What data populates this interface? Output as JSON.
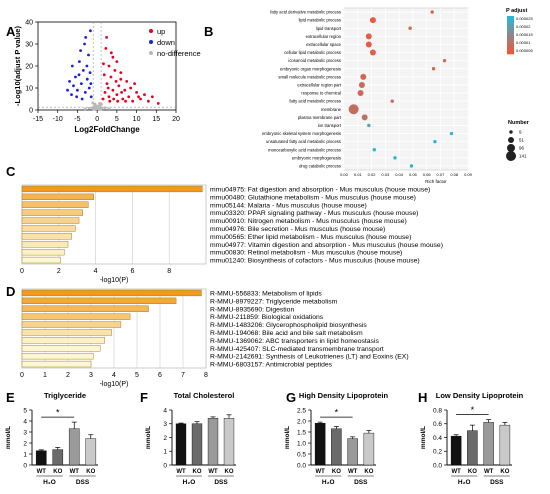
{
  "panels": {
    "A": "A",
    "B": "B",
    "C": "C",
    "D": "D",
    "E": "E",
    "F": "F",
    "G": "G",
    "H": "H"
  },
  "colors": {
    "up": "#e8001c",
    "down": "#1a22d8",
    "nodiff": "#b8b8b8",
    "bar_dark": "#111111",
    "bar_mid": "#6a6a6a",
    "bar_gray": "#9a9a9a",
    "bar_light": "#c9c9c9",
    "enrich_orange": "#f39a1e",
    "enrich_pale": "#fdf6d2",
    "padj_low": "#f2563a",
    "padj_high": "#2ab7d6"
  },
  "chart_data": [
    {
      "id": "A",
      "type": "scatter",
      "title": "",
      "xlabel": "Log2FoldChange",
      "ylabel": "-Log10(adjust P value)",
      "xlim": [
        -15,
        20
      ],
      "ylim": [
        0,
        40
      ],
      "xticks": [
        "-15",
        "-10",
        "-5",
        "0",
        "5",
        "10",
        "15",
        "20"
      ],
      "yticks": [
        "0",
        "10",
        "20",
        "30",
        "40"
      ],
      "legend": [
        "up",
        "down",
        "no-difference"
      ],
      "legend_position": "top-right",
      "series": [
        {
          "name": "up",
          "points": [
            [
              1.5,
              5
            ],
            [
              2,
              8
            ],
            [
              2.5,
              12
            ],
            [
              3,
              6
            ],
            [
              3.5,
              15
            ],
            [
              4,
              9
            ],
            [
              4.5,
              18
            ],
            [
              5,
              7
            ],
            [
              5.5,
              11
            ],
            [
              6,
              14
            ],
            [
              6.5,
              5
            ],
            [
              7,
              9
            ],
            [
              7.5,
              13
            ],
            [
              8,
              6
            ],
            [
              8.5,
              10
            ],
            [
              9,
              4
            ],
            [
              10,
              8
            ],
            [
              11,
              5
            ],
            [
              12,
              7
            ],
            [
              3,
              20
            ],
            [
              4,
              24
            ],
            [
              2.2,
              28
            ],
            [
              5,
              22
            ],
            [
              6,
              17
            ],
            [
              1.8,
              16
            ],
            [
              2.8,
              10
            ],
            [
              3.2,
              4
            ],
            [
              4.2,
              5
            ],
            [
              5.2,
              4
            ],
            [
              6.2,
              8
            ],
            [
              7.2,
              4
            ],
            [
              2.4,
              33
            ],
            [
              3.6,
              26
            ],
            [
              9.5,
              12
            ],
            [
              10.5,
              6
            ],
            [
              13,
              4
            ],
            [
              14,
              6
            ],
            [
              15.5,
              3
            ],
            [
              1.6,
              21
            ],
            [
              4.8,
              13
            ]
          ]
        },
        {
          "name": "down",
          "points": [
            [
              -1.5,
              6
            ],
            [
              -2,
              10
            ],
            [
              -2.5,
              14
            ],
            [
              -3,
              8
            ],
            [
              -3.5,
              18
            ],
            [
              -4,
              12
            ],
            [
              -4.5,
              22
            ],
            [
              -5,
              9
            ],
            [
              -5.5,
              15
            ],
            [
              -6,
              11
            ],
            [
              -6.5,
              7
            ],
            [
              -7,
              13
            ],
            [
              -2.2,
              25
            ],
            [
              -3.2,
              30
            ],
            [
              -1.8,
              17
            ],
            [
              -2.6,
              20
            ],
            [
              -4.2,
              27
            ],
            [
              -3.8,
              5
            ],
            [
              -5.2,
              6
            ],
            [
              -1.6,
              12
            ],
            [
              -2.9,
              33
            ],
            [
              -4.6,
              16
            ],
            [
              -6.3,
              20
            ],
            [
              -7.5,
              9
            ],
            [
              -1.7,
              36
            ]
          ]
        },
        {
          "name": "no-difference",
          "points": [
            [
              -0.5,
              0.5
            ],
            [
              0.5,
              0.8
            ],
            [
              -1,
              1.2
            ],
            [
              1,
              1
            ],
            [
              -0.3,
              2
            ],
            [
              0.3,
              1.8
            ],
            [
              0,
              0.4
            ],
            [
              -1.2,
              0.7
            ],
            [
              1.2,
              0.6
            ],
            [
              -0.8,
              1.6
            ],
            [
              0.8,
              2.2
            ],
            [
              -0.6,
              2.8
            ],
            [
              0.6,
              3
            ],
            [
              -1.1,
              3.2
            ],
            [
              1.1,
              2.6
            ],
            [
              0.2,
              0.2
            ],
            [
              -0.2,
              1.1
            ],
            [
              2,
              1
            ],
            [
              -2,
              0.8
            ],
            [
              3,
              0.6
            ],
            [
              -3,
              0.5
            ],
            [
              0.9,
              0.3
            ],
            [
              -0.9,
              0.4
            ]
          ]
        }
      ]
    },
    {
      "id": "B",
      "type": "scatter",
      "title": "",
      "xlabel": "Rich factor",
      "xlim": [
        0,
        0.09
      ],
      "xticks": [
        "0.00",
        "0.01",
        "0.02",
        "0.03",
        "0.04",
        "0.05",
        "0.06",
        "0.07",
        "0.08",
        "0.09"
      ],
      "legend_color_title": "P adjust",
      "legend_color_ticks": [
        "0.000025",
        "0.00002",
        "0.000015",
        "0.00001",
        "0.000005"
      ],
      "legend_size_title": "Number",
      "legend_size_ticks": [
        "9",
        "51",
        "96",
        "141"
      ],
      "terms": [
        {
          "label": "fatty acid derivative metabolic process",
          "x": 0.064,
          "n": 9,
          "padj": 1e-06
        },
        {
          "label": "lipid metabolic process",
          "x": 0.021,
          "n": 51,
          "padj": 1e-06
        },
        {
          "label": "lipid transport",
          "x": 0.048,
          "n": 9,
          "padj": 2e-06
        },
        {
          "label": "extracellular region",
          "x": 0.018,
          "n": 51,
          "padj": 2e-06
        },
        {
          "label": "extracellular space",
          "x": 0.018,
          "n": 51,
          "padj": 2e-06
        },
        {
          "label": "cellular lipid metabolic process",
          "x": 0.021,
          "n": 51,
          "padj": 2e-06
        },
        {
          "label": "icosanoid metabolic process",
          "x": 0.073,
          "n": 9,
          "padj": 4e-06
        },
        {
          "label": "embryonic organ morphogenesis",
          "x": 0.065,
          "n": 9,
          "padj": 4e-06
        },
        {
          "label": "small molecule metabolic process",
          "x": 0.014,
          "n": 51,
          "padj": 4e-06
        },
        {
          "label": "extracellular region part",
          "x": 0.013,
          "n": 51,
          "padj": 5e-06
        },
        {
          "label": "response to chemical",
          "x": 0.012,
          "n": 51,
          "padj": 5e-06
        },
        {
          "label": "fatty acid metabolic process",
          "x": 0.035,
          "n": 9,
          "padj": 6e-06
        },
        {
          "label": "membrane",
          "x": 0.007,
          "n": 141,
          "padj": 6e-06
        },
        {
          "label": "plasma membrane part",
          "x": 0.015,
          "n": 51,
          "padj": 7e-06
        },
        {
          "label": "ion transport",
          "x": 0.018,
          "n": 9,
          "padj": 2e-05
        },
        {
          "label": "embryonic skeletal system morphogenesis",
          "x": 0.078,
          "n": 9,
          "padj": 2.4e-05
        },
        {
          "label": "unsaturated fatty acid metabolic process",
          "x": 0.066,
          "n": 9,
          "padj": 2.4e-05
        },
        {
          "label": "monocarboxylic acid metabolic process",
          "x": 0.022,
          "n": 9,
          "padj": 2.5e-05
        },
        {
          "label": "embryonic morphogenesis",
          "x": 0.037,
          "n": 9,
          "padj": 2.5e-05
        },
        {
          "label": "drug catabolic process",
          "x": 0.049,
          "n": 9,
          "padj": 2.5e-05
        }
      ]
    },
    {
      "id": "C",
      "type": "bar",
      "orientation": "horizontal",
      "xlabel": "-log10(P)",
      "xlim": [
        0,
        10
      ],
      "xticks": [
        "0",
        "2",
        "4",
        "6",
        "8"
      ],
      "categories": [
        "mmu04975: Fat digestion and absorption - Mus musculus (house mouse)",
        "mmu00480: Glutathione metabolism - Mus musculus (house mouse)",
        "mmu05144: Malaria - Mus musculus (house mouse)",
        "mmu03320: PPAR signaling pathway - Mus musculus (house mouse)",
        "mmu00910: Nitrogen metabolism - Mus musculus (house mouse)",
        "mmu04976: Bile secretion - Mus musculus (house mouse)",
        "mmu00565: Ether lipid metabolism - Mus musculus (house mouse)",
        "mmu04977: Vitamin digestion and absorption - Mus musculus (house mouse)",
        "mmu00830: Retinol metabolism - Mus musculus (house mouse)",
        "mmu01240: Biosynthesis of cofactors - Mus musculus (house mouse)"
      ],
      "values": [
        9.8,
        3.9,
        3.6,
        3.3,
        3.1,
        2.9,
        2.7,
        2.5,
        2.3,
        2.1
      ]
    },
    {
      "id": "D",
      "type": "bar",
      "orientation": "horizontal",
      "xlabel": "-log10(P)",
      "xlim": [
        0,
        8
      ],
      "xticks": [
        "0",
        "1",
        "2",
        "3",
        "4",
        "5",
        "6",
        "7",
        "8"
      ],
      "categories": [
        "R-MMU-556833: Metabolism of lipids",
        "R-MMU-8979227: Triglyceride metabolism",
        "R-MMU-8935690: Digestion",
        "R-MMU-211859: Biological oxidations",
        "R-MMU-1483206: Glycerophospholipid biosynthesis",
        "R-MMU-194068: Bile acid and bile salt metabolism",
        "R-MMU-1369062: ABC transporters in lipid homeostasis",
        "R-MMU-425407: SLC-mediated transmembrane transport",
        "R-MMU-2142691: Synthesis of Leukotrienes (LT) and Eoxins (EX)",
        "R-MMU-6803157: Antimicrobial peptides"
      ],
      "values": [
        7.8,
        6.7,
        5.5,
        4.7,
        4.3,
        3.9,
        3.6,
        3.4,
        3.1,
        3.0
      ]
    },
    {
      "id": "E",
      "type": "bar",
      "title": "Triglyceride",
      "ylabel": "mmol/L",
      "ylim": [
        0,
        5
      ],
      "yticks": [
        "0",
        "1",
        "2",
        "3",
        "4",
        "5"
      ],
      "categories": [
        "WT",
        "KO",
        "WT",
        "KO"
      ],
      "groups": [
        "H₂O",
        "DSS"
      ],
      "values": [
        1.3,
        1.4,
        3.3,
        2.4
      ],
      "errors": [
        0.08,
        0.2,
        0.6,
        0.35
      ],
      "significance": "*",
      "sig_between": [
        0,
        2
      ]
    },
    {
      "id": "F",
      "type": "bar",
      "title": "Total Cholesterol",
      "ylabel": "mmol/L",
      "ylim": [
        0,
        4
      ],
      "yticks": [
        "0",
        "1",
        "2",
        "3",
        "4"
      ],
      "categories": [
        "WT",
        "KO",
        "WT",
        "KO"
      ],
      "groups": [
        "H₂O",
        "DSS"
      ],
      "values": [
        3.0,
        3.0,
        3.4,
        3.4
      ],
      "errors": [
        0.05,
        0.15,
        0.1,
        0.25
      ]
    },
    {
      "id": "G",
      "type": "bar",
      "title": "High Density Lipoprotein",
      "ylabel": "mmol/L",
      "ylim": [
        0,
        2.5
      ],
      "yticks": [
        "0.0",
        "0.5",
        "1.0",
        "1.5",
        "2.0",
        "2.5"
      ],
      "categories": [
        "WT",
        "KO",
        "WT",
        "KO"
      ],
      "groups": [
        "H₂O",
        "DSS"
      ],
      "values": [
        1.9,
        1.65,
        1.2,
        1.45
      ],
      "errors": [
        0.05,
        0.1,
        0.08,
        0.12
      ],
      "significance": "*",
      "sig_between": [
        0,
        2
      ]
    },
    {
      "id": "H",
      "type": "bar",
      "title": "Low Density Lipoprotein",
      "ylabel": "mmol/L",
      "ylim": [
        0,
        0.8
      ],
      "yticks": [
        "0.0",
        "0.2",
        "0.4",
        "0.6",
        "0.8"
      ],
      "categories": [
        "WT",
        "KO",
        "WT",
        "KO"
      ],
      "groups": [
        "H₂O",
        "DSS"
      ],
      "values": [
        0.42,
        0.5,
        0.62,
        0.58
      ],
      "errors": [
        0.02,
        0.08,
        0.04,
        0.04
      ],
      "significance": "*",
      "sig_between": [
        0,
        2
      ]
    }
  ]
}
